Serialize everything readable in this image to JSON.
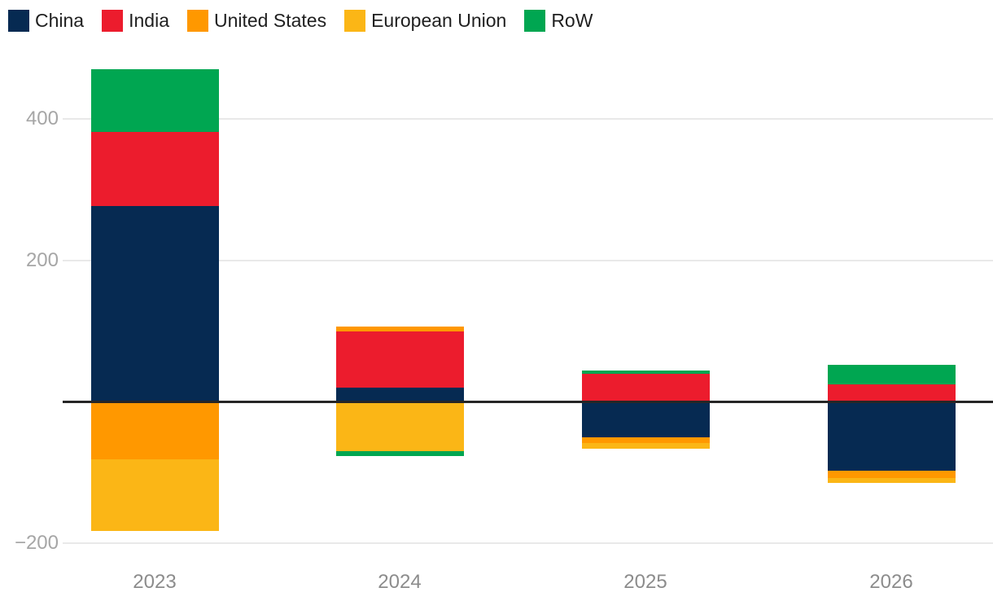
{
  "chart_data": {
    "type": "bar",
    "stacked": true,
    "title": "",
    "categories": [
      "2023",
      "2024",
      "2025",
      "2026"
    ],
    "series": [
      {
        "name": "China",
        "color": "#062a52",
        "values": [
          277,
          20,
          -50,
          -98
        ]
      },
      {
        "name": "India",
        "color": "#ec1c2d",
        "values": [
          105,
          79,
          40,
          25
        ]
      },
      {
        "name": "United States",
        "color": "#ff9800",
        "values": [
          -81,
          7,
          -8,
          -10
        ]
      },
      {
        "name": "European Union",
        "color": "#fbb616",
        "values": [
          -102,
          -70,
          -8,
          -7
        ]
      },
      {
        "name": "RoW",
        "color": "#00a651",
        "values": [
          88,
          -7,
          4,
          27
        ]
      }
    ],
    "ylim": [
      -200,
      470
    ],
    "yticks": [
      {
        "value": 400,
        "label": "400"
      },
      {
        "value": 200,
        "label": "200"
      },
      {
        "value": -200,
        "label": "−200"
      }
    ],
    "grid": "horizontal",
    "zero_line": true,
    "legend_position": "top-left"
  },
  "theme": {
    "background": "#ffffff",
    "grid_color": "#e9e9e9",
    "zero_line_color": "#262626",
    "y_tick_label_color": "#a6a6a6",
    "x_tick_label_color": "#8c8c8c",
    "legend_text_color": "#1f1f1f"
  }
}
